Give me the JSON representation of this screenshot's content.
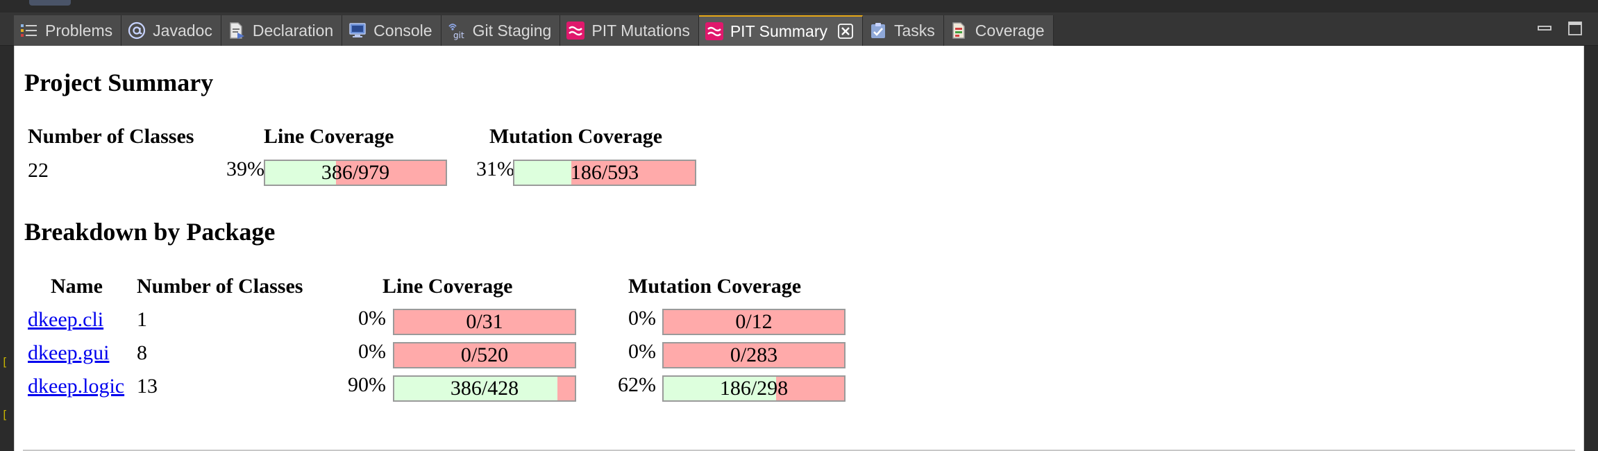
{
  "tabs": [
    {
      "label": "Problems",
      "icon": "problems-icon"
    },
    {
      "label": "Javadoc",
      "icon": "at-icon"
    },
    {
      "label": "Declaration",
      "icon": "declaration-icon"
    },
    {
      "label": "Console",
      "icon": "console-icon"
    },
    {
      "label": "Git Staging",
      "icon": "git-icon"
    },
    {
      "label": "PIT Mutations",
      "icon": "pit-icon"
    },
    {
      "label": "PIT Summary",
      "icon": "pit-icon",
      "active": true
    },
    {
      "label": "Tasks",
      "icon": "tasks-icon"
    },
    {
      "label": "Coverage",
      "icon": "coverage-icon"
    }
  ],
  "colors": {
    "tab_bg": "#4b4b4b",
    "tab_active_bg": "#5a5a5a",
    "pit_icon": "#e0186c",
    "bar_covered": "#ddffdd",
    "bar_uncovered": "#ffaaaa",
    "link": "#0000ee"
  },
  "summary": {
    "title": "Project Summary",
    "headers": {
      "classes": "Number of Classes",
      "line": "Line Coverage",
      "mutation": "Mutation Coverage"
    },
    "classes": "22",
    "line_pct": "39%",
    "line_ratio": "386/979",
    "line_fraction": 0.394,
    "mutation_pct": "31%",
    "mutation_ratio": "186/593",
    "mutation_fraction": 0.314
  },
  "breakdown": {
    "title": "Breakdown by Package",
    "headers": {
      "name": "Name",
      "classes": "Number of Classes",
      "line": "Line Coverage",
      "mutation": "Mutation Coverage"
    },
    "rows": [
      {
        "name": "dkeep.cli",
        "classes": "1",
        "line_pct": "0%",
        "line_ratio": "0/31",
        "line_fraction": 0,
        "mutation_pct": "0%",
        "mutation_ratio": "0/12",
        "mutation_fraction": 0
      },
      {
        "name": "dkeep.gui",
        "classes": "8",
        "line_pct": "0%",
        "line_ratio": "0/520",
        "line_fraction": 0,
        "mutation_pct": "0%",
        "mutation_ratio": "0/283",
        "mutation_fraction": 0
      },
      {
        "name": "dkeep.logic",
        "classes": "13",
        "line_pct": "90%",
        "line_ratio": "386/428",
        "line_fraction": 0.902,
        "mutation_pct": "62%",
        "mutation_ratio": "186/298",
        "mutation_fraction": 0.624
      }
    ]
  }
}
